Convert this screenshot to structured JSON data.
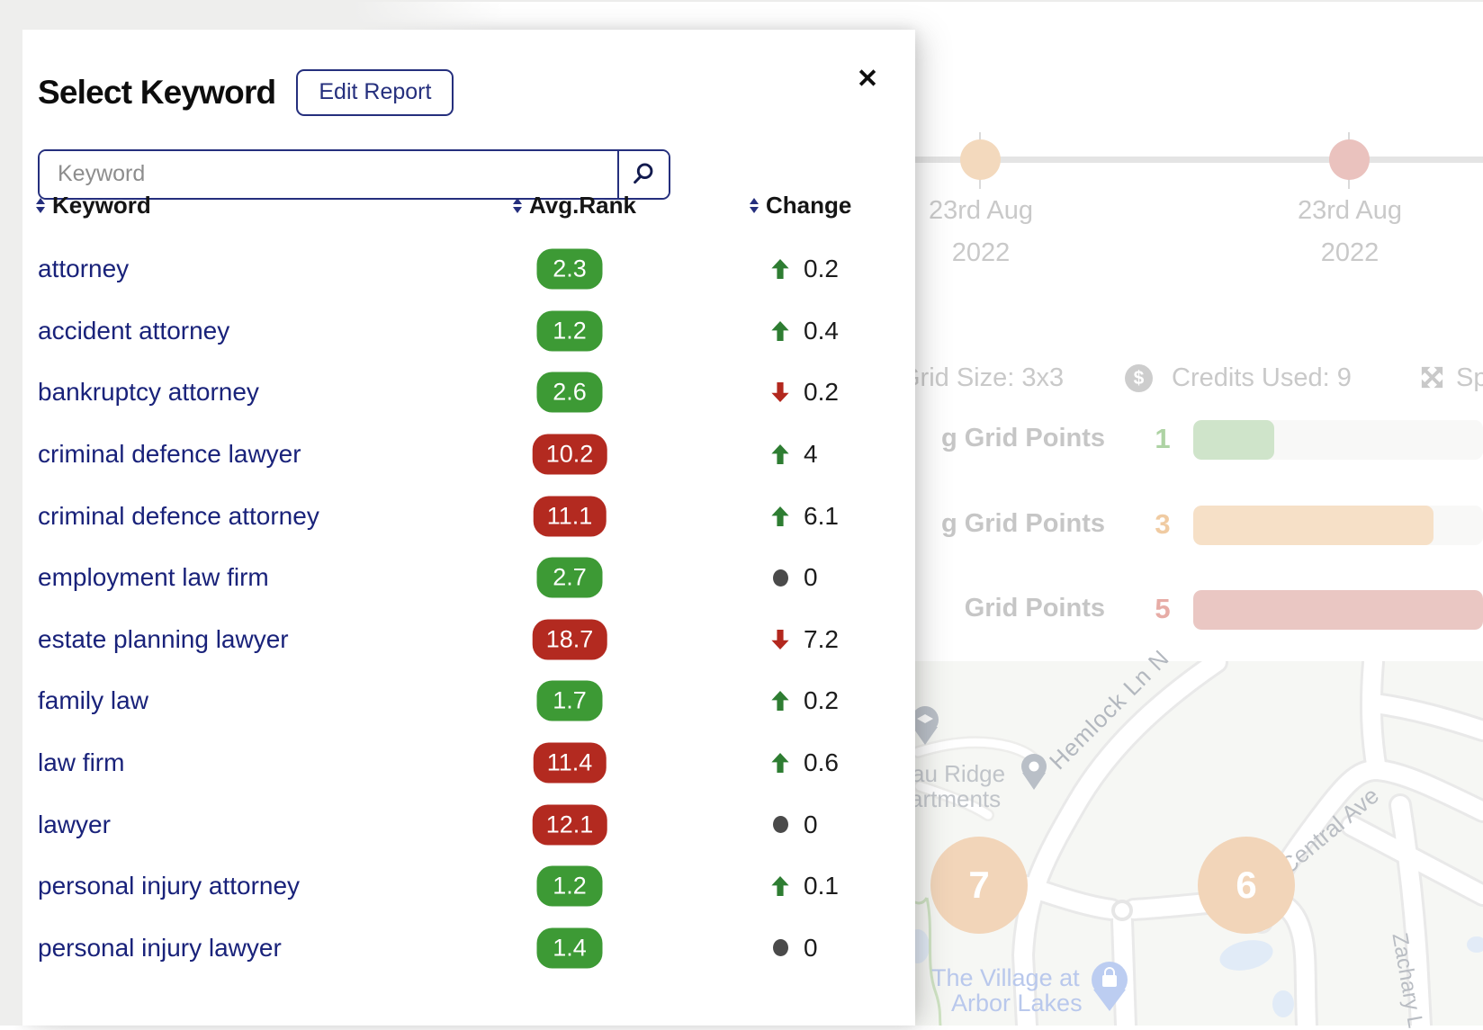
{
  "modal": {
    "title": "Select Keyword",
    "edit_report_label": "Edit Report",
    "close_symbol": "✕",
    "search": {
      "placeholder": "Keyword"
    },
    "table": {
      "columns": [
        {
          "label": "Keyword"
        },
        {
          "label": "Avg.Rank"
        },
        {
          "label": "Change"
        }
      ],
      "rows": [
        {
          "keyword": "attorney",
          "avg_rank": "2.3",
          "rank_level": "good",
          "change": "0.2",
          "direction": "up"
        },
        {
          "keyword": "accident attorney",
          "avg_rank": "1.2",
          "rank_level": "good",
          "change": "0.4",
          "direction": "up"
        },
        {
          "keyword": "bankruptcy attorney",
          "avg_rank": "2.6",
          "rank_level": "good",
          "change": "0.2",
          "direction": "down"
        },
        {
          "keyword": "criminal defence lawyer",
          "avg_rank": "10.2",
          "rank_level": "bad",
          "change": "4",
          "direction": "up"
        },
        {
          "keyword": "criminal defence attorney",
          "avg_rank": "11.1",
          "rank_level": "bad",
          "change": "6.1",
          "direction": "up"
        },
        {
          "keyword": "employment law firm",
          "avg_rank": "2.7",
          "rank_level": "good",
          "change": "0",
          "direction": "none"
        },
        {
          "keyword": "estate planning lawyer",
          "avg_rank": "18.7",
          "rank_level": "bad",
          "change": "7.2",
          "direction": "down"
        },
        {
          "keyword": "family law",
          "avg_rank": "1.7",
          "rank_level": "good",
          "change": "0.2",
          "direction": "up"
        },
        {
          "keyword": "law firm",
          "avg_rank": "11.4",
          "rank_level": "bad",
          "change": "0.6",
          "direction": "up"
        },
        {
          "keyword": "lawyer",
          "avg_rank": "12.1",
          "rank_level": "bad",
          "change": "0",
          "direction": "none"
        },
        {
          "keyword": "personal injury attorney",
          "avg_rank": "1.2",
          "rank_level": "good",
          "change": "0.1",
          "direction": "up"
        },
        {
          "keyword": "personal injury lawyer",
          "avg_rank": "1.4",
          "rank_level": "good",
          "change": "0",
          "direction": "none"
        }
      ]
    }
  },
  "background": {
    "timeline": {
      "points": [
        {
          "date_line1": "23rd Aug",
          "date_line2": "2022",
          "dot_color": "#f3d9bd"
        },
        {
          "date_line1": "23rd Aug",
          "date_line2": "2022",
          "dot_color": "#eac2be"
        }
      ]
    },
    "info_bar": {
      "grid_size": "Grid Size: 3x3",
      "dollar_symbol": "$",
      "credits": "Credits Used: 9",
      "partial_label": "Sp"
    },
    "grid_points": [
      {
        "label": "g Grid Points",
        "value": "1",
        "tone": "green",
        "bar_pct": 28
      },
      {
        "label": "g Grid Points",
        "value": "3",
        "tone": "orange",
        "bar_pct": 83
      },
      {
        "label": "Grid Points",
        "value": "5",
        "tone": "red",
        "bar_pct": 100
      }
    ],
    "map": {
      "markers": [
        {
          "value": "7"
        },
        {
          "value": "6"
        }
      ],
      "labels": {
        "place_line1": "au Ridge",
        "place_line2": "artments",
        "road_hemlock": "Hemlock Ln N",
        "road_central": "Central Ave",
        "road_zachary": "Zachary L",
        "poi_line1": "The Village at",
        "poi_line2": "Arbor Lakes"
      }
    }
  },
  "colors": {
    "accent_navy": "#252f7d",
    "keyword_link": "#19227a",
    "rank_good": "#3d9a35",
    "rank_bad": "#b32a20",
    "change_up": "#2e7d32",
    "change_down": "#b3281e",
    "change_none": "#4a4a4a",
    "marker_peach": "#f2d5b9"
  }
}
